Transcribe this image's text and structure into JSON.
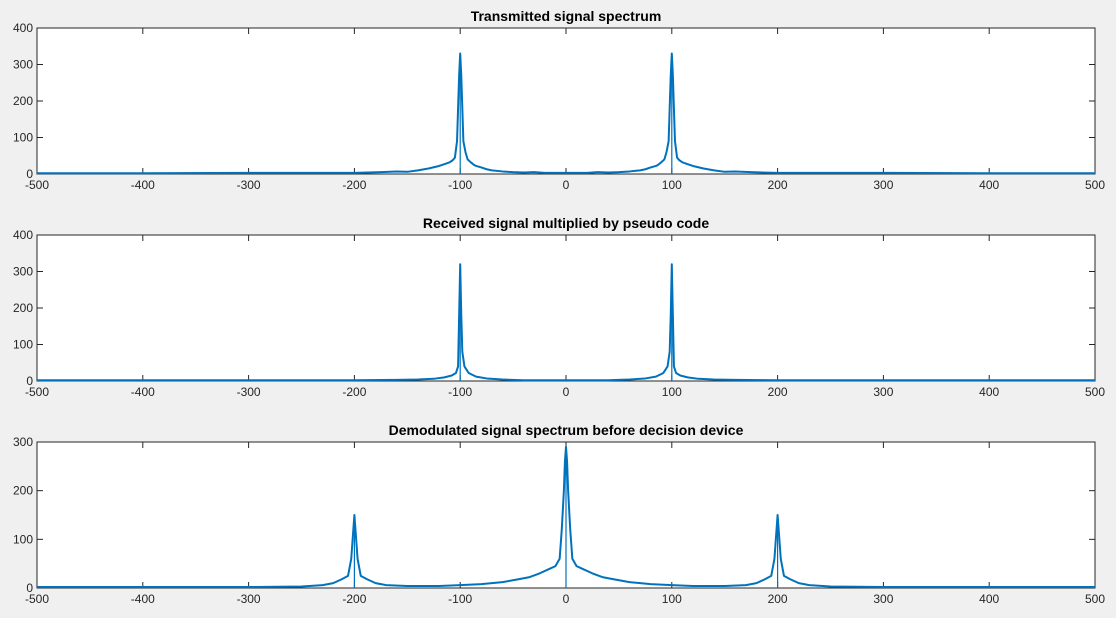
{
  "figure": {
    "background": "#f0f0f0",
    "line_color": "#0072bd"
  },
  "chart_data": [
    {
      "type": "line",
      "title": "Transmitted signal spectrum",
      "xlim": [
        -500,
        500
      ],
      "ylim": [
        0,
        400
      ],
      "xticks": [
        -500,
        -400,
        -300,
        -200,
        -100,
        0,
        100,
        200,
        300,
        400,
        500
      ],
      "yticks": [
        0,
        100,
        200,
        300,
        400
      ],
      "peaks": [
        {
          "x": -100,
          "y": 330
        },
        {
          "x": 100,
          "y": 330
        }
      ],
      "series": [
        {
          "x": [
            -500,
            -400,
            -300,
            -200,
            -175,
            -160,
            -150,
            -140,
            -130,
            -120,
            -115,
            -110,
            -107,
            -105,
            -103,
            -102,
            -101,
            -100,
            -99,
            -98,
            -97,
            -95,
            -93,
            -90,
            -87,
            -85,
            -80,
            -75,
            -70,
            -60,
            -50,
            -40,
            -30,
            -20,
            -10,
            0,
            10,
            20,
            30,
            40,
            50,
            60,
            70,
            75,
            80,
            85,
            87,
            90,
            93,
            95,
            97,
            98,
            99,
            100,
            101,
            102,
            103,
            105,
            107,
            110,
            115,
            120,
            130,
            140,
            150,
            160,
            175,
            200,
            300,
            400,
            500
          ],
          "y": [
            2,
            2,
            3,
            3,
            5,
            7,
            6,
            10,
            15,
            22,
            27,
            32,
            38,
            45,
            90,
            180,
            270,
            330,
            270,
            180,
            90,
            60,
            40,
            32,
            25,
            22,
            18,
            13,
            10,
            7,
            5,
            4,
            5,
            3,
            3,
            3,
            3,
            3,
            5,
            4,
            5,
            7,
            10,
            13,
            18,
            22,
            25,
            32,
            40,
            60,
            90,
            180,
            270,
            330,
            270,
            180,
            90,
            45,
            38,
            32,
            27,
            22,
            15,
            10,
            6,
            7,
            5,
            3,
            3,
            2,
            2
          ]
        }
      ]
    },
    {
      "type": "line",
      "title": "Received signal multiplied by pseudo code",
      "xlim": [
        -500,
        500
      ],
      "ylim": [
        0,
        400
      ],
      "xticks": [
        -500,
        -400,
        -300,
        -200,
        -100,
        0,
        100,
        200,
        300,
        400,
        500
      ],
      "yticks": [
        0,
        100,
        200,
        300,
        400
      ],
      "peaks": [
        {
          "x": -100,
          "y": 320
        },
        {
          "x": 100,
          "y": 320
        }
      ],
      "series": [
        {
          "x": [
            -500,
            -300,
            -200,
            -160,
            -140,
            -125,
            -115,
            -108,
            -104,
            -102,
            -101,
            -100,
            -99,
            -98,
            -96,
            -92,
            -85,
            -75,
            -60,
            -40,
            -20,
            0,
            20,
            40,
            60,
            75,
            85,
            92,
            96,
            98,
            99,
            100,
            101,
            102,
            104,
            108,
            115,
            125,
            140,
            160,
            200,
            300,
            500
          ],
          "y": [
            2,
            2,
            2,
            3,
            4,
            6,
            10,
            15,
            22,
            40,
            180,
            320,
            180,
            80,
            40,
            22,
            12,
            7,
            4,
            2,
            2,
            2,
            2,
            2,
            4,
            7,
            12,
            22,
            40,
            80,
            180,
            320,
            180,
            40,
            22,
            15,
            10,
            6,
            4,
            3,
            2,
            2,
            2
          ]
        }
      ]
    },
    {
      "type": "line",
      "title": "Demodulated signal spectrum before decision device",
      "xlim": [
        -500,
        500
      ],
      "ylim": [
        0,
        300
      ],
      "xticks": [
        -500,
        -400,
        -300,
        -200,
        -100,
        0,
        100,
        200,
        300,
        400,
        500
      ],
      "yticks": [
        0,
        100,
        200,
        300
      ],
      "peaks": [
        {
          "x": -200,
          "y": 150
        },
        {
          "x": 0,
          "y": 290
        },
        {
          "x": 200,
          "y": 150
        }
      ],
      "series": [
        {
          "x": [
            -500,
            -300,
            -250,
            -230,
            -220,
            -212,
            -206,
            -203,
            -201,
            -200,
            -199,
            -197,
            -194,
            -188,
            -180,
            -170,
            -150,
            -120,
            -100,
            -80,
            -60,
            -45,
            -35,
            -25,
            -15,
            -10,
            -6,
            -4,
            -2,
            -1,
            0,
            1,
            2,
            4,
            6,
            10,
            15,
            25,
            35,
            45,
            60,
            80,
            100,
            120,
            150,
            170,
            180,
            188,
            194,
            197,
            199,
            200,
            201,
            203,
            206,
            212,
            220,
            230,
            250,
            300,
            500
          ],
          "y": [
            2,
            2,
            3,
            6,
            10,
            18,
            25,
            60,
            120,
            150,
            120,
            60,
            25,
            18,
            10,
            6,
            4,
            4,
            6,
            8,
            12,
            18,
            22,
            30,
            40,
            45,
            60,
            120,
            200,
            260,
            290,
            260,
            200,
            120,
            60,
            45,
            40,
            30,
            22,
            18,
            12,
            8,
            6,
            4,
            4,
            6,
            10,
            18,
            25,
            60,
            120,
            150,
            120,
            60,
            25,
            18,
            10,
            6,
            3,
            2,
            2
          ]
        }
      ]
    }
  ]
}
